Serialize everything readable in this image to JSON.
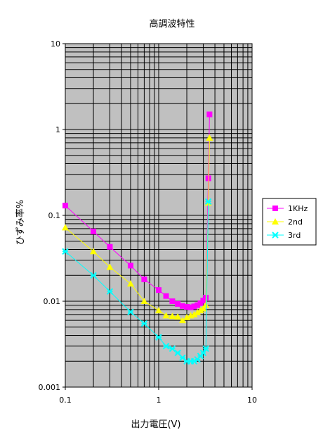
{
  "chart_data": {
    "type": "line",
    "title": "高調波特性",
    "xlabel": "出力電圧(V)",
    "ylabel": "ひずみ率%",
    "x_scale": "log",
    "y_scale": "log",
    "xlim": [
      0.1,
      10
    ],
    "ylim": [
      0.001,
      10
    ],
    "x_ticks": [
      "0.1",
      "1",
      "10"
    ],
    "y_ticks": [
      "0.001",
      "0.01",
      "0.1",
      "1",
      "10"
    ],
    "grid": true,
    "legend": "right",
    "plot_background": "#c0c0c0",
    "series": [
      {
        "name": "1KHz",
        "color": "#ff00ff",
        "marker": "square",
        "x": [
          0.1,
          0.2,
          0.3,
          0.5,
          0.7,
          1.0,
          1.2,
          1.4,
          1.6,
          1.8,
          2.0,
          2.2,
          2.4,
          2.6,
          2.8,
          3.0,
          3.2,
          3.4,
          3.5
        ],
        "y": [
          0.13,
          0.065,
          0.043,
          0.026,
          0.018,
          0.0135,
          0.0115,
          0.01,
          0.0093,
          0.0088,
          0.0086,
          0.0085,
          0.0087,
          0.009,
          0.0095,
          0.0102,
          0.011,
          0.27,
          1.5
        ]
      },
      {
        "name": "2nd",
        "color": "#ffff00",
        "marker": "triangle",
        "x": [
          0.1,
          0.2,
          0.3,
          0.5,
          0.7,
          1.0,
          1.2,
          1.4,
          1.6,
          1.8,
          2.0,
          2.2,
          2.4,
          2.6,
          2.8,
          3.0,
          3.2,
          3.4,
          3.5
        ],
        "y": [
          0.072,
          0.038,
          0.025,
          0.016,
          0.01,
          0.0078,
          0.0068,
          0.0067,
          0.0066,
          0.006,
          0.0065,
          0.0068,
          0.007,
          0.0074,
          0.0078,
          0.0082,
          0.009,
          0.14,
          0.8
        ]
      },
      {
        "name": "3rd",
        "color": "#00ffff",
        "marker": "star",
        "x": [
          0.1,
          0.2,
          0.3,
          0.5,
          0.7,
          1.0,
          1.2,
          1.4,
          1.6,
          1.8,
          2.0,
          2.2,
          2.4,
          2.6,
          2.8,
          3.0,
          3.2,
          3.4
        ],
        "y": [
          0.038,
          0.02,
          0.013,
          0.0075,
          0.0055,
          0.0038,
          0.003,
          0.0028,
          0.0025,
          0.0022,
          0.002,
          0.002,
          0.002,
          0.0021,
          0.0023,
          0.0025,
          0.0028,
          0.145
        ]
      }
    ]
  }
}
